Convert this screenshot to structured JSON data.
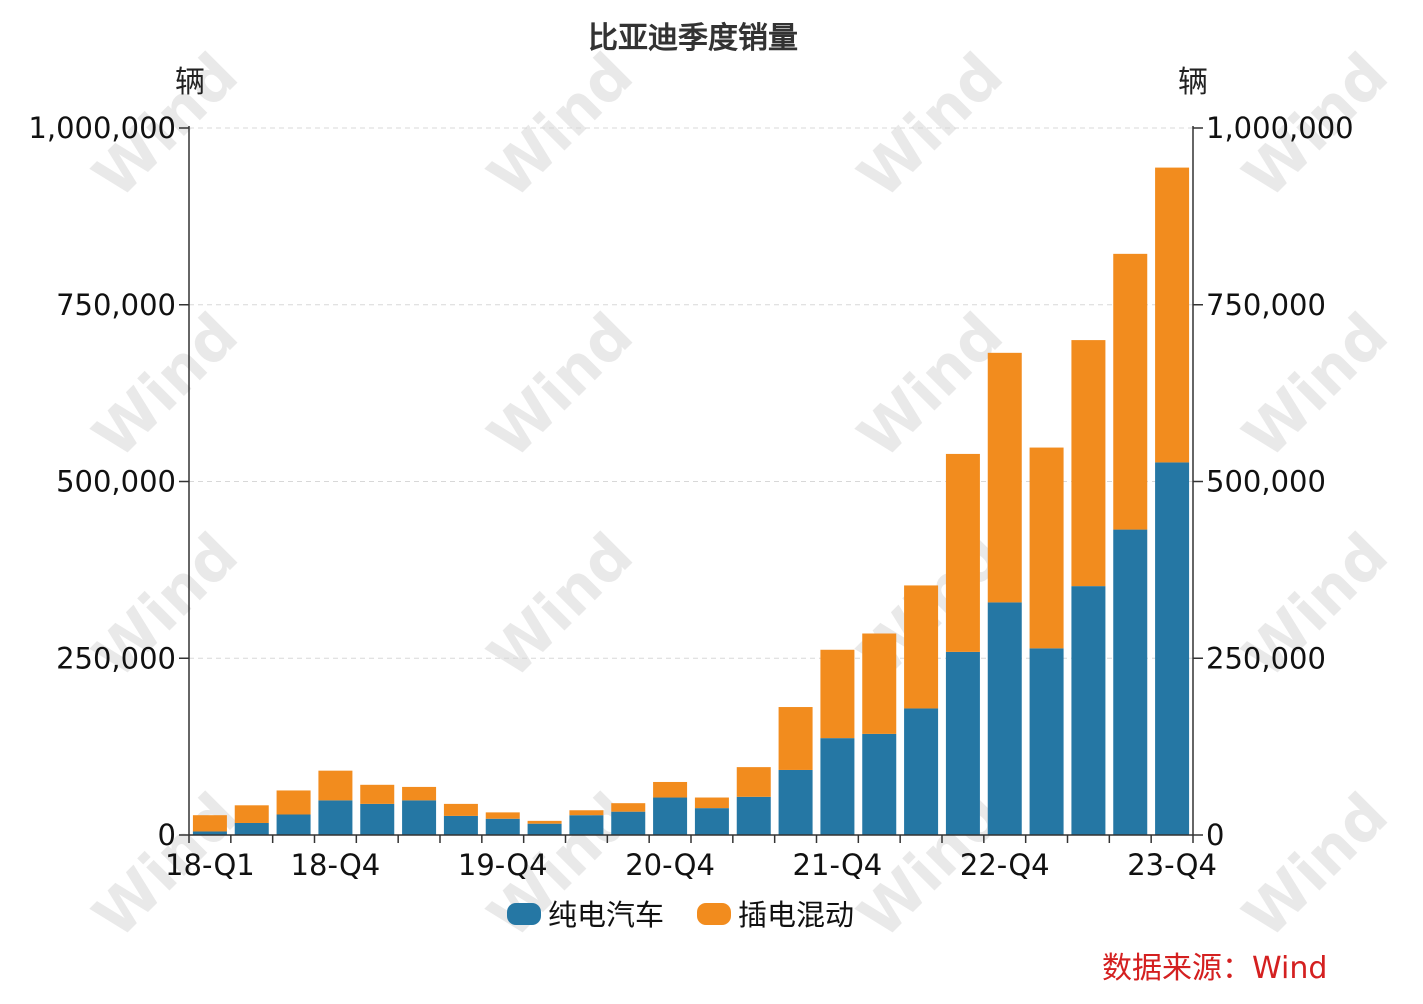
{
  "chart_data": {
    "type": "bar",
    "stacked": true,
    "title": "比亚迪季度销量",
    "ylabel_left": "辆",
    "ylabel_right": "辆",
    "ylim": [
      0,
      1000000
    ],
    "yticks": [
      "1,000,000",
      "750,000",
      "500,000",
      "250,000",
      "0"
    ],
    "ytick_values": [
      1000000,
      750000,
      500000,
      250000,
      0
    ],
    "categories": [
      "18-Q1",
      "18-Q2",
      "18-Q3",
      "18-Q4",
      "19-Q1",
      "19-Q2",
      "19-Q3",
      "19-Q4",
      "20-Q1",
      "20-Q2",
      "20-Q3",
      "20-Q4",
      "21-Q1",
      "21-Q2",
      "21-Q3",
      "21-Q4",
      "22-Q1",
      "22-Q2",
      "22-Q3",
      "22-Q4",
      "23-Q1",
      "23-Q2",
      "23-Q3",
      "23-Q4"
    ],
    "xtick_labels": [
      "18-Q1",
      "18-Q4",
      "19-Q4",
      "20-Q4",
      "21-Q4",
      "22-Q4",
      "23-Q4"
    ],
    "series": [
      {
        "name": "纯电汽车",
        "color": "#2577a4",
        "values": [
          5000,
          17000,
          29000,
          49000,
          44000,
          49000,
          27000,
          23000,
          16000,
          28000,
          33000,
          53000,
          38000,
          54000,
          92000,
          137000,
          143000,
          179000,
          259000,
          329000,
          264000,
          352000,
          432000,
          527000
        ]
      },
      {
        "name": "插电混动",
        "color": "#f28c1e",
        "values": [
          23000,
          25000,
          34000,
          42000,
          27000,
          19000,
          17000,
          9000,
          4000,
          7000,
          12000,
          22000,
          15000,
          42000,
          89000,
          125000,
          142000,
          174000,
          280000,
          353000,
          284000,
          348000,
          390000,
          417000
        ]
      }
    ],
    "grid": true,
    "legend_position": "bottom"
  },
  "source_note": "数据来源：Wind",
  "watermark_text": "Wind"
}
